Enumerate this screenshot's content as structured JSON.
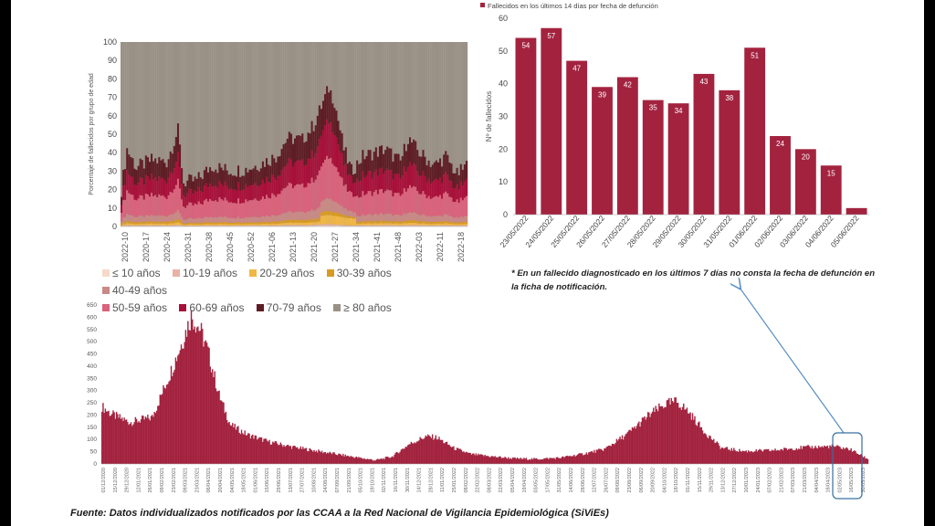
{
  "chart_data": [
    {
      "id": "age-share",
      "type": "stacked-bar",
      "ylabel": "Porcentaje de fallecidos por grupo de edad",
      "ylim": [
        0,
        100
      ],
      "yticks": [
        0,
        10,
        20,
        30,
        40,
        50,
        60,
        70,
        80,
        90,
        100
      ],
      "xticks": [
        "2022-10",
        "2020-17",
        "2020-24",
        "2020-31",
        "2020-38",
        "2020-45",
        "2020-52",
        "2021-06",
        "2021-13",
        "2021-20",
        "2021-27",
        "2021-34",
        "2021-41",
        "2021-48",
        "2022-03",
        "2022-11",
        "2022-18"
      ],
      "legend": [
        {
          "label": "≤ 10 años",
          "color": "#f6d9c8"
        },
        {
          "label": "10-19 años",
          "color": "#e8b2a4"
        },
        {
          "label": "20-29 años",
          "color": "#f1b744"
        },
        {
          "label": "30-39 años",
          "color": "#d99a22"
        },
        {
          "label": "40-49 años",
          "color": "#c98a86"
        },
        {
          "label": "50-59 años",
          "color": "#d9637c"
        },
        {
          "label": "60-69 años",
          "color": "#a8103a"
        },
        {
          "label": "70-79 años",
          "color": "#5e1d24"
        },
        {
          "label": "≥ 80 años",
          "color": "#9a9186"
        }
      ],
      "top_below80_profile": [
        {
          "week": 0,
          "value": 20
        },
        {
          "week": 3,
          "value": 42
        },
        {
          "week": 8,
          "value": 32
        },
        {
          "week": 16,
          "value": 36
        },
        {
          "week": 24,
          "value": 35
        },
        {
          "week": 30,
          "value": 52
        },
        {
          "week": 33,
          "value": 24
        },
        {
          "week": 40,
          "value": 25
        },
        {
          "week": 48,
          "value": 33
        },
        {
          "week": 58,
          "value": 30
        },
        {
          "week": 66,
          "value": 31
        },
        {
          "week": 74,
          "value": 34
        },
        {
          "week": 82,
          "value": 38
        },
        {
          "week": 88,
          "value": 48
        },
        {
          "week": 96,
          "value": 47
        },
        {
          "week": 102,
          "value": 55
        },
        {
          "week": 108,
          "value": 70
        },
        {
          "week": 110,
          "value": 75
        },
        {
          "week": 113,
          "value": 68
        },
        {
          "week": 118,
          "value": 42
        },
        {
          "week": 122,
          "value": 30
        },
        {
          "week": 128,
          "value": 38
        },
        {
          "week": 134,
          "value": 40
        },
        {
          "week": 140,
          "value": 42
        },
        {
          "week": 148,
          "value": 35
        },
        {
          "week": 152,
          "value": 48
        },
        {
          "week": 158,
          "value": 40
        },
        {
          "week": 166,
          "value": 33
        },
        {
          "week": 172,
          "value": 38
        },
        {
          "week": 178,
          "value": 28
        },
        {
          "week": 183,
          "value": 33
        }
      ]
    },
    {
      "id": "last14",
      "type": "bar",
      "title": "Fallecidos en los últimos 14 días por fecha de defunción",
      "ylabel": "Nº de fallecidos",
      "ylim": [
        0,
        60
      ],
      "yticks": [
        0,
        10,
        20,
        30,
        40,
        50,
        60
      ],
      "categories": [
        "23/05/2022",
        "24/05/2022",
        "25/05/2022",
        "26/05/2022",
        "27/05/2022",
        "28/05/2022",
        "29/05/2022",
        "30/05/2022",
        "31/05/2022",
        "01/06/2022",
        "02/06/2022",
        "03/06/2022",
        "04/06/2022",
        "05/06/2022"
      ],
      "values": [
        54,
        57,
        47,
        39,
        42,
        35,
        34,
        43,
        38,
        51,
        24,
        20,
        15,
        2
      ],
      "value_labels": [
        "54",
        "57",
        "47",
        "39",
        "42",
        "35",
        "34",
        "43",
        "38",
        "51",
        "24",
        "20",
        "15",
        ""
      ],
      "color": "#a3233f"
    },
    {
      "id": "daily",
      "type": "bar",
      "ylim": [
        0,
        650
      ],
      "yticks": [
        0,
        50,
        100,
        150,
        200,
        250,
        300,
        350,
        400,
        450,
        500,
        550,
        600,
        650
      ],
      "color": "#a3233f",
      "series_profile": [
        {
          "day": 0,
          "value": 235
        },
        {
          "day": 8,
          "value": 205
        },
        {
          "day": 25,
          "value": 170
        },
        {
          "day": 45,
          "value": 190
        },
        {
          "day": 62,
          "value": 380
        },
        {
          "day": 72,
          "value": 500
        },
        {
          "day": 80,
          "value": 605
        },
        {
          "day": 88,
          "value": 550
        },
        {
          "day": 95,
          "value": 460
        },
        {
          "day": 105,
          "value": 280
        },
        {
          "day": 115,
          "value": 160
        },
        {
          "day": 130,
          "value": 120
        },
        {
          "day": 150,
          "value": 90
        },
        {
          "day": 170,
          "value": 70
        },
        {
          "day": 190,
          "value": 55
        },
        {
          "day": 210,
          "value": 40
        },
        {
          "day": 230,
          "value": 25
        },
        {
          "day": 245,
          "value": 15
        },
        {
          "day": 260,
          "value": 30
        },
        {
          "day": 275,
          "value": 80
        },
        {
          "day": 290,
          "value": 112
        },
        {
          "day": 300,
          "value": 108
        },
        {
          "day": 315,
          "value": 65
        },
        {
          "day": 330,
          "value": 40
        },
        {
          "day": 350,
          "value": 30
        },
        {
          "day": 370,
          "value": 22
        },
        {
          "day": 390,
          "value": 20
        },
        {
          "day": 410,
          "value": 25
        },
        {
          "day": 430,
          "value": 40
        },
        {
          "day": 450,
          "value": 60
        },
        {
          "day": 470,
          "value": 120
        },
        {
          "day": 490,
          "value": 200
        },
        {
          "day": 505,
          "value": 245
        },
        {
          "day": 515,
          "value": 255
        },
        {
          "day": 525,
          "value": 215
        },
        {
          "day": 540,
          "value": 130
        },
        {
          "day": 555,
          "value": 65
        },
        {
          "day": 575,
          "value": 52
        },
        {
          "day": 600,
          "value": 55
        },
        {
          "day": 630,
          "value": 68
        },
        {
          "day": 655,
          "value": 72
        },
        {
          "day": 670,
          "value": 60
        },
        {
          "day": 686,
          "value": 20
        }
      ],
      "xticks": [
        "01/12/2020",
        "15/12/2020",
        "29/12/2020",
        "12/01/2021",
        "26/01/2021",
        "09/02/2021",
        "23/02/2021",
        "09/03/2021",
        "23/03/2021",
        "06/04/2021",
        "20/04/2021",
        "04/05/2021",
        "18/05/2021",
        "01/06/2021",
        "15/06/2021",
        "29/06/2021",
        "13/07/2021",
        "27/07/2021",
        "10/08/2021",
        "24/08/2021",
        "07/09/2021",
        "21/09/2021",
        "05/10/2021",
        "19/10/2021",
        "02/11/2021",
        "16/11/2021",
        "30/11/2021",
        "14/12/2021",
        "28/12/2021",
        "11/01/2022",
        "25/01/2022",
        "08/02/2022",
        "22/02/2022",
        "08/03/2022",
        "22/03/2022",
        "05/04/2022",
        "19/04/2022",
        "03/05/2022",
        "17/05/2022",
        "31/05/2022",
        "14/06/2022",
        "28/06/2022",
        "12/07/2022",
        "26/07/2022",
        "09/08/2022",
        "23/08/2022",
        "06/09/2022",
        "20/09/2022",
        "04/10/2022",
        "18/10/2022",
        "01/11/2022",
        "15/11/2022",
        "29/11/2022",
        "13/12/2022",
        "27/12/2022",
        "10/01/2023",
        "24/01/2023",
        "07/02/2023",
        "21/02/2023",
        "07/03/2023",
        "21/03/2023",
        "04/04/2023",
        "18/04/2023",
        "02/05/2023",
        "16/05/2023",
        "30/05/2023"
      ]
    }
  ],
  "note": "* En un fallecido diagnosticado en los últimos 7 días no consta la fecha de defunción en la ficha de notificación.",
  "source": "Fuente: Datos individualizados notificados por las CCAA a la Red Nacional de Vigilancia Epidemiológica (SiViEs)",
  "colors": {
    "highlight_box": "#3a6fa0",
    "arrow": "#5a8fc2"
  }
}
